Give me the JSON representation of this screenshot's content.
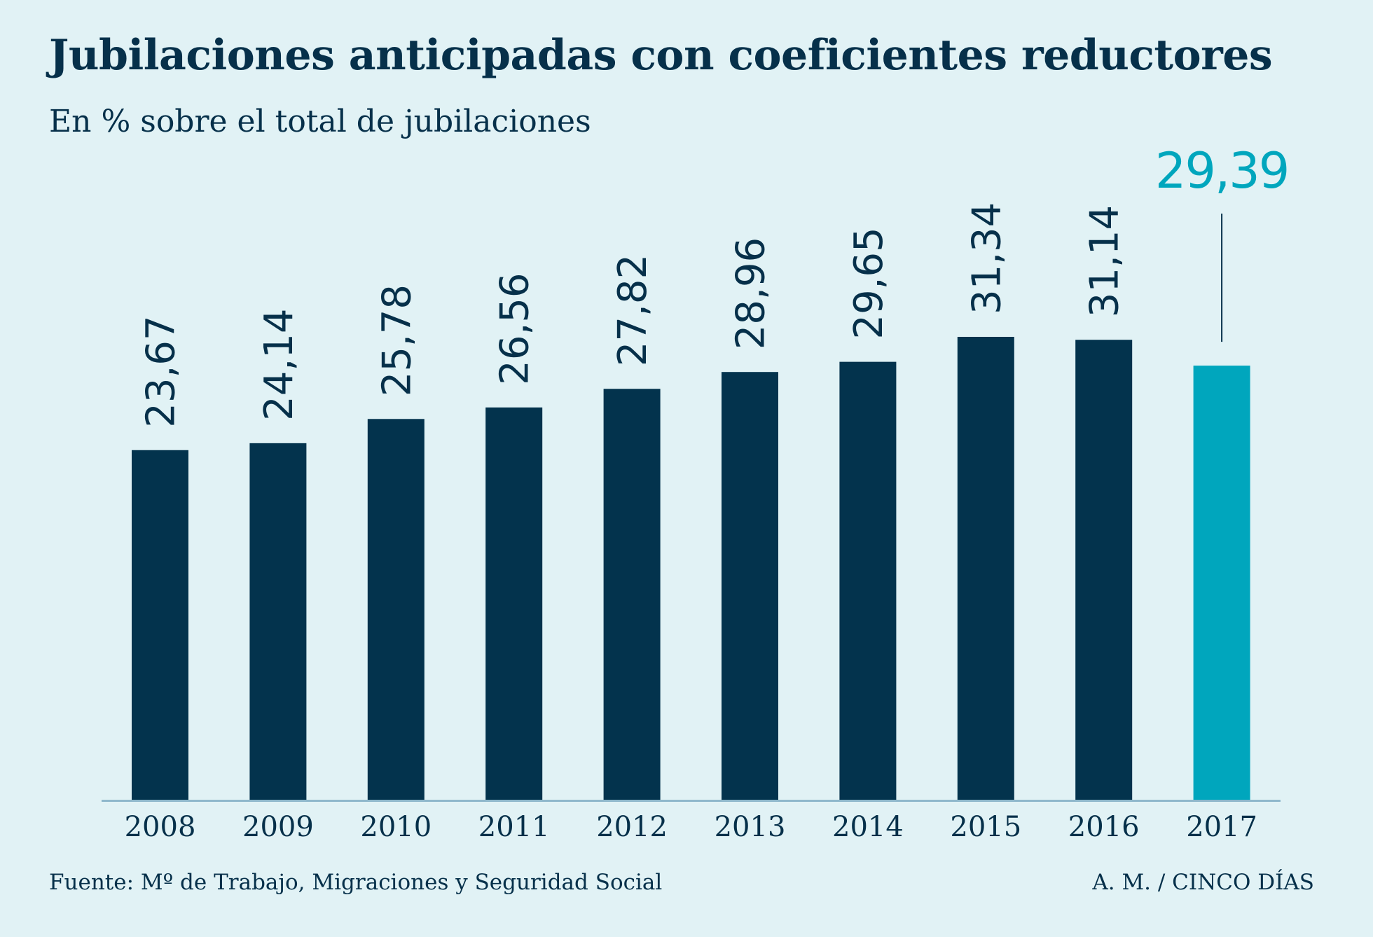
{
  "title": "Jubilaciones anticipadas con coeficientes reductores",
  "subtitle": "En % sobre el total de jubilaciones",
  "source": "Fuente: Mº de Trabajo, Migraciones y Seguridad Social",
  "credit": "A. M. / CINCO DÍAS",
  "colors": {
    "background": "#e1f2f5",
    "bar": "#03334d",
    "highlight": "#00a6bd",
    "text": "#06304a",
    "axis": "#8fb8cc"
  },
  "chart_data": {
    "type": "bar",
    "categories": [
      "2008",
      "2009",
      "2010",
      "2011",
      "2012",
      "2013",
      "2014",
      "2015",
      "2016",
      "2017"
    ],
    "values": [
      23.67,
      24.14,
      25.78,
      26.56,
      27.82,
      28.96,
      29.65,
      31.34,
      31.14,
      29.39
    ],
    "value_labels": [
      "23,67",
      "24,14",
      "25,78",
      "26,56",
      "27,82",
      "28,96",
      "29,65",
      "31,34",
      "31,14",
      "29,39"
    ],
    "highlight_category": "2017",
    "title": "Jubilaciones anticipadas con coeficientes reductores",
    "ylabel": "En % sobre el total de jubilaciones",
    "xlabel": "",
    "ylim": [
      0,
      31.34
    ],
    "grid": false,
    "legend": "none"
  }
}
